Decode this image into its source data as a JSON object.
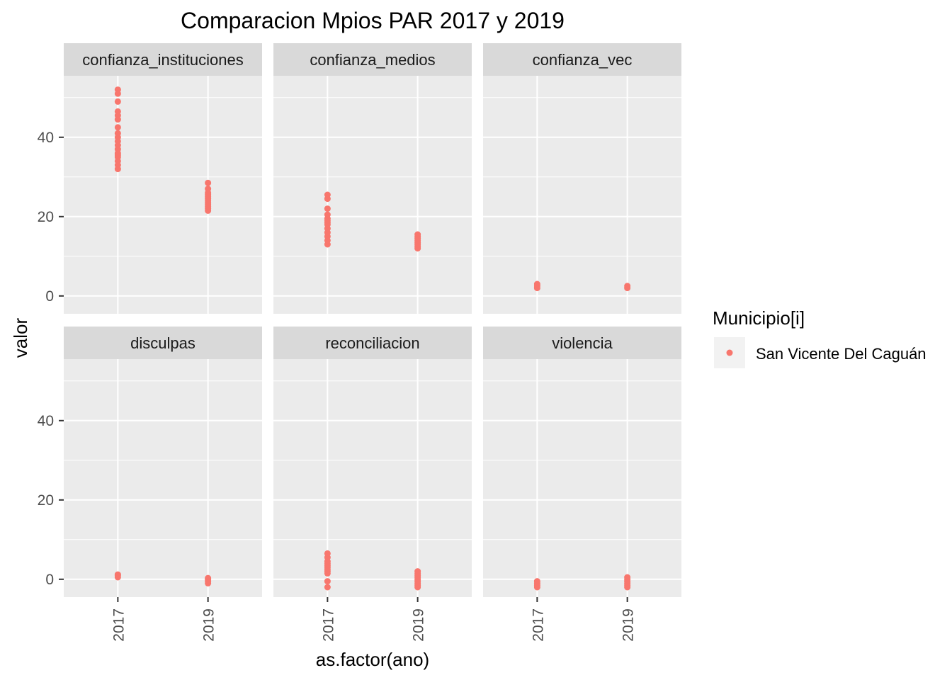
{
  "chart_data": {
    "type": "scatter",
    "title": "Comparacion Mpios PAR 2017 y 2019",
    "xlabel": "as.factor(ano)",
    "ylabel": "valor",
    "categories": [
      "2017",
      "2019"
    ],
    "ylim": [
      -4.5,
      55.5
    ],
    "y_breaks": [
      0,
      20,
      40
    ],
    "grid": true,
    "legend": {
      "title": "Municipio[i]",
      "position": "right",
      "entries": [
        {
          "label": "San Vicente Del Caguán",
          "color": "#F8766D"
        }
      ]
    },
    "facets": [
      {
        "name": "confianza_instituciones",
        "points": {
          "2017": [
            32,
            33,
            34,
            35,
            35.5,
            36,
            37,
            38,
            39,
            40,
            41,
            42.5,
            44.5,
            45.5,
            46.5,
            49,
            51,
            52
          ],
          "2019": [
            21.5,
            22,
            22.5,
            23,
            23.5,
            24,
            24.5,
            25,
            25.5,
            26,
            27,
            28.5
          ]
        }
      },
      {
        "name": "confianza_medios",
        "points": {
          "2017": [
            13,
            14,
            15,
            16,
            17,
            18,
            18.5,
            19,
            19.5,
            20.5,
            22,
            24.5,
            25.5
          ],
          "2019": [
            12,
            12.5,
            13,
            13.5,
            14,
            14.5,
            15,
            15.5
          ]
        }
      },
      {
        "name": "confianza_vec",
        "points": {
          "2017": [
            2,
            2.5,
            3
          ],
          "2019": [
            2,
            2.5
          ]
        }
      },
      {
        "name": "disculpas",
        "points": {
          "2017": [
            0.5,
            1,
            1.2
          ],
          "2019": [
            -1,
            -0.5,
            0,
            0.3
          ]
        }
      },
      {
        "name": "reconciliacion",
        "points": {
          "2017": [
            -2,
            -0.5,
            1.5,
            2,
            2.5,
            3,
            3.5,
            4,
            4.5,
            5.5,
            6.5
          ],
          "2019": [
            -2,
            -1.5,
            -1,
            -0.5,
            0,
            0.5,
            1,
            1.5,
            2
          ]
        }
      },
      {
        "name": "violencia",
        "points": {
          "2017": [
            -2,
            -1.5,
            -1,
            -0.5
          ],
          "2019": [
            -2,
            -1.5,
            -1,
            -0.5,
            0,
            0.5
          ]
        }
      }
    ]
  },
  "colors": {
    "series": "#F8766D",
    "panel_bg": "#EBEBEB",
    "strip_bg": "#D9D9D9",
    "grid": "#FFFFFF"
  }
}
